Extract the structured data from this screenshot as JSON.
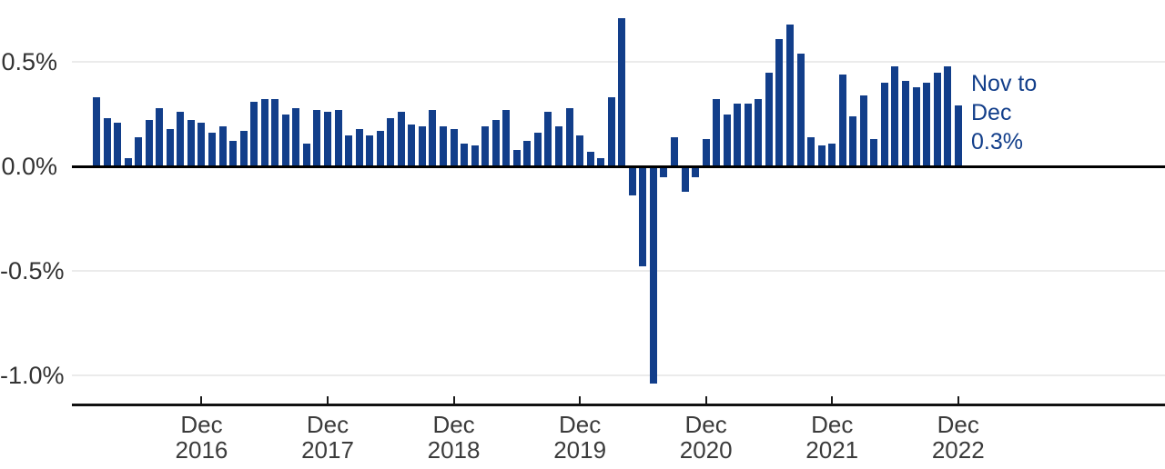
{
  "chart_data": {
    "type": "bar",
    "title": "",
    "xlabel": "",
    "ylabel": "",
    "unit": "percent month-over-month change",
    "grid": "horizontal",
    "legend_position": "none",
    "ylim": [
      -1.15,
      0.75
    ],
    "bar_color": "#123e8a",
    "gridline_color": "#ebebeb",
    "zero_line_color": "#000000",
    "axis_text_color": "#333333",
    "categories": [
      "Feb 2016",
      "Mar 2016",
      "Apr 2016",
      "May 2016",
      "Jun 2016",
      "Jul 2016",
      "Aug 2016",
      "Sep 2016",
      "Oct 2016",
      "Nov 2016",
      "Dec 2016",
      "Jan 2017",
      "Feb 2017",
      "Mar 2017",
      "Apr 2017",
      "May 2017",
      "Jun 2017",
      "Jul 2017",
      "Aug 2017",
      "Sep 2017",
      "Oct 2017",
      "Nov 2017",
      "Dec 2017",
      "Jan 2018",
      "Feb 2018",
      "Mar 2018",
      "Apr 2018",
      "May 2018",
      "Jun 2018",
      "Jul 2018",
      "Aug 2018",
      "Sep 2018",
      "Oct 2018",
      "Nov 2018",
      "Dec 2018",
      "Jan 2019",
      "Feb 2019",
      "Mar 2019",
      "Apr 2019",
      "May 2019",
      "Jun 2019",
      "Jul 2019",
      "Aug 2019",
      "Sep 2019",
      "Oct 2019",
      "Nov 2019",
      "Dec 2019",
      "Jan 2020",
      "Feb 2020",
      "Mar 2020",
      "Apr 2020",
      "May 2020",
      "Jun 2020",
      "Jul 2020",
      "Aug 2020",
      "Sep 2020",
      "Oct 2020",
      "Nov 2020",
      "Dec 2020",
      "Jan 2021",
      "Feb 2021",
      "Mar 2021",
      "Apr 2021",
      "May 2021",
      "Jun 2021",
      "Jul 2021",
      "Aug 2021",
      "Sep 2021",
      "Oct 2021",
      "Nov 2021",
      "Dec 2021",
      "Jan 2022",
      "Feb 2022",
      "Mar 2022",
      "Apr 2022",
      "May 2022",
      "Jun 2022",
      "Jul 2022",
      "Aug 2022",
      "Sep 2022",
      "Oct 2022",
      "Nov 2022",
      "Dec 2022"
    ],
    "values": [
      0.33,
      0.23,
      0.21,
      0.04,
      0.14,
      0.22,
      0.28,
      0.18,
      0.26,
      0.22,
      0.21,
      0.16,
      0.19,
      0.12,
      0.17,
      0.31,
      0.32,
      0.32,
      0.25,
      0.28,
      0.11,
      0.27,
      0.26,
      0.27,
      0.15,
      0.18,
      0.15,
      0.17,
      0.23,
      0.26,
      0.2,
      0.19,
      0.27,
      0.19,
      0.18,
      0.11,
      0.1,
      0.19,
      0.22,
      0.27,
      0.08,
      0.12,
      0.16,
      0.26,
      0.19,
      0.28,
      0.15,
      0.07,
      0.04,
      0.33,
      0.71,
      -0.14,
      -0.48,
      -1.04,
      -0.05,
      0.14,
      -0.12,
      -0.05,
      0.13,
      0.32,
      0.25,
      0.3,
      0.3,
      0.32,
      0.45,
      0.61,
      0.68,
      0.54,
      0.14,
      0.1,
      0.11,
      0.44,
      0.24,
      0.34,
      0.13,
      0.4,
      0.48,
      0.41,
      0.38,
      0.4,
      0.45,
      0.48,
      0.29
    ],
    "y_ticks": [
      {
        "label": "0.5%",
        "value": 0.5
      },
      {
        "label": "0.0%",
        "value": 0.0
      },
      {
        "label": "-0.5%",
        "value": -0.5
      },
      {
        "label": "-1.0%",
        "value": -1.0
      }
    ],
    "x_ticks": [
      {
        "month": "Dec 2016",
        "line1": "Dec",
        "line2": "2016"
      },
      {
        "month": "Dec 2017",
        "line1": "Dec",
        "line2": "2017"
      },
      {
        "month": "Dec 2018",
        "line1": "Dec",
        "line2": "2018"
      },
      {
        "month": "Dec 2019",
        "line1": "Dec",
        "line2": "2019"
      },
      {
        "month": "Dec 2020",
        "line1": "Dec",
        "line2": "2020"
      },
      {
        "month": "Dec 2021",
        "line1": "Dec",
        "line2": "2021"
      },
      {
        "month": "Dec 2022",
        "line1": "Dec",
        "line2": "2022"
      }
    ],
    "annotation": {
      "lines": [
        "Nov to",
        "Dec",
        "0.3%"
      ],
      "color": "#123e8a",
      "refers_to": "Dec 2022"
    }
  }
}
